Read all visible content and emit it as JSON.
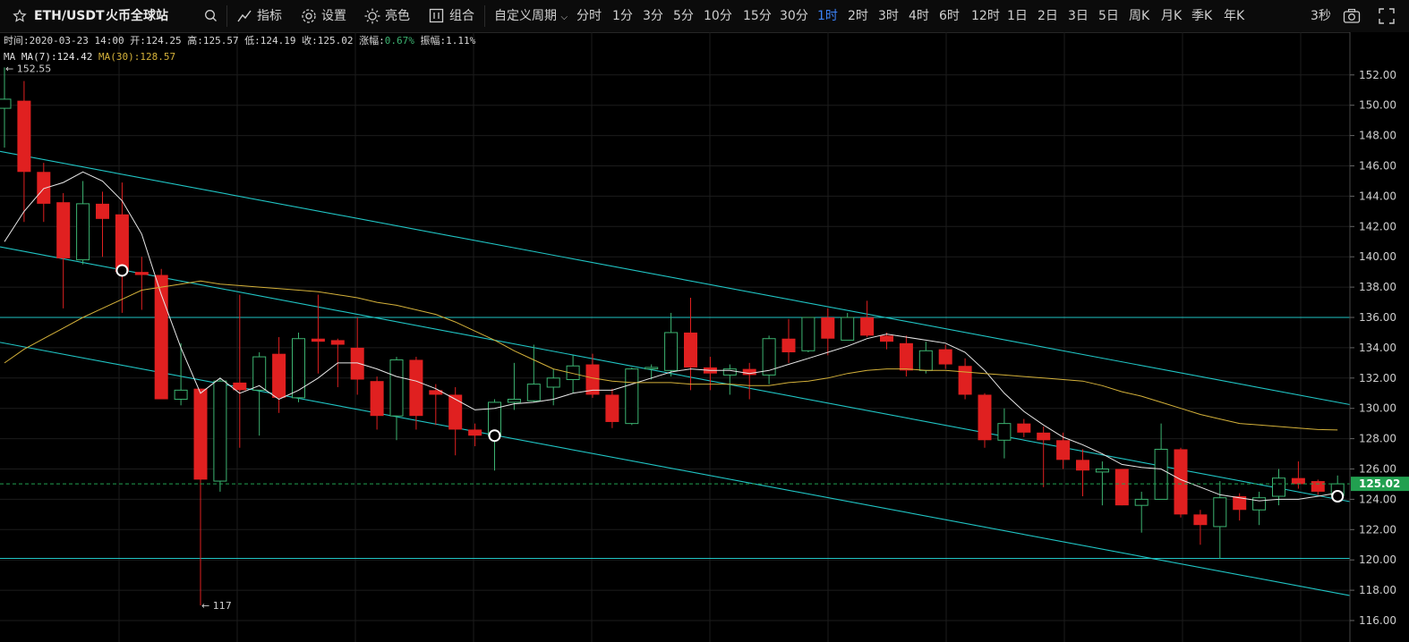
{
  "header": {
    "symbol": "ETH/USDT",
    "exchange": "火币全球站",
    "indicator_label": "指标",
    "settings_label": "设置",
    "theme_label": "亮色",
    "combo_label": "组合",
    "custom_period_label": "自定义周期",
    "periods": [
      "分时",
      "1分",
      "3分",
      "5分",
      "10分",
      "15分",
      "30分",
      "1时",
      "2时",
      "3时",
      "4时",
      "6时",
      "12时",
      "1日",
      "2日",
      "3日",
      "5日",
      "周K",
      "月K",
      "季K",
      "年K"
    ],
    "active_period": "1时",
    "refresh_label": "3秒"
  },
  "colors": {
    "up": "#3cb371",
    "down": "#e02020",
    "ma7": "#e8e8e8",
    "ma30": "#d4b13a",
    "trend": "#20c5c5",
    "price_tag": "#22a050",
    "active": "#3b82f6"
  },
  "info_bar": {
    "time_label": "时间:",
    "time_value": "2020-03-23 14:00",
    "open_label": "开:",
    "open_value": "124.25",
    "high_label": "高:",
    "high_value": "125.57",
    "low_label": "低:",
    "low_value": "124.19",
    "close_label": "收:",
    "close_value": "125.02",
    "change_label": "涨幅:",
    "change_value": "0.67%",
    "amplitude_label": "振幅:",
    "amplitude_value": "1.11%"
  },
  "ma_bar": {
    "ma_label": "MA",
    "ma7": "MA(7):124.42",
    "ma30": "MA(30):128.57"
  },
  "chart_data": {
    "type": "candlestick",
    "y_ticks": [
      116,
      118,
      120,
      122,
      124,
      126,
      128,
      130,
      132,
      134,
      136,
      138,
      140,
      142,
      144,
      146,
      148,
      150,
      152
    ],
    "ylim": [
      115.2,
      154.1
    ],
    "last_price": "125.02",
    "max_marker": "← 152.55",
    "min_marker": "← 117",
    "candles": [
      {
        "o": 149.8,
        "h": 152.5,
        "l": 147.2,
        "c": 150.4
      },
      {
        "o": 150.3,
        "h": 151.6,
        "l": 142.3,
        "c": 145.6
      },
      {
        "o": 145.6,
        "h": 146.2,
        "l": 142.3,
        "c": 143.5
      },
      {
        "o": 143.6,
        "h": 144.2,
        "l": 136.6,
        "c": 139.9
      },
      {
        "o": 139.8,
        "h": 145.0,
        "l": 139.5,
        "c": 143.5
      },
      {
        "o": 143.5,
        "h": 144.3,
        "l": 140.0,
        "c": 142.5
      },
      {
        "o": 142.8,
        "h": 144.9,
        "l": 136.3,
        "c": 139.0
      },
      {
        "o": 139.0,
        "h": 140.0,
        "l": 136.5,
        "c": 138.8
      },
      {
        "o": 138.8,
        "h": 139.2,
        "l": 130.6,
        "c": 130.6
      },
      {
        "o": 130.6,
        "h": 134.3,
        "l": 130.2,
        "c": 131.2
      },
      {
        "o": 131.3,
        "h": 131.3,
        "l": 117.0,
        "c": 125.3
      },
      {
        "o": 125.2,
        "h": 132.0,
        "l": 124.5,
        "c": 131.8
      },
      {
        "o": 131.7,
        "h": 137.5,
        "l": 127.4,
        "c": 131.2
      },
      {
        "o": 131.2,
        "h": 133.7,
        "l": 128.2,
        "c": 133.4
      },
      {
        "o": 133.6,
        "h": 134.7,
        "l": 129.7,
        "c": 130.7
      },
      {
        "o": 130.7,
        "h": 135.0,
        "l": 130.4,
        "c": 134.6
      },
      {
        "o": 134.6,
        "h": 137.5,
        "l": 132.3,
        "c": 134.4
      },
      {
        "o": 134.5,
        "h": 134.6,
        "l": 131.4,
        "c": 134.2
      },
      {
        "o": 134.0,
        "h": 136.0,
        "l": 130.9,
        "c": 131.9
      },
      {
        "o": 131.8,
        "h": 132.1,
        "l": 128.6,
        "c": 129.5
      },
      {
        "o": 129.5,
        "h": 133.4,
        "l": 127.9,
        "c": 133.2
      },
      {
        "o": 133.2,
        "h": 133.4,
        "l": 128.6,
        "c": 129.5
      },
      {
        "o": 131.2,
        "h": 131.6,
        "l": 128.9,
        "c": 130.9
      },
      {
        "o": 130.9,
        "h": 131.4,
        "l": 126.9,
        "c": 128.6
      },
      {
        "o": 128.6,
        "h": 129.0,
        "l": 127.5,
        "c": 128.2
      },
      {
        "o": 128.2,
        "h": 130.6,
        "l": 125.9,
        "c": 130.4
      },
      {
        "o": 130.4,
        "h": 133.0,
        "l": 129.9,
        "c": 130.6
      },
      {
        "o": 130.5,
        "h": 134.2,
        "l": 130.4,
        "c": 131.6
      },
      {
        "o": 131.4,
        "h": 132.6,
        "l": 130.2,
        "c": 132.0
      },
      {
        "o": 131.9,
        "h": 133.5,
        "l": 131.0,
        "c": 132.8
      },
      {
        "o": 132.9,
        "h": 133.6,
        "l": 130.7,
        "c": 130.9
      },
      {
        "o": 130.9,
        "h": 131.3,
        "l": 128.7,
        "c": 129.1
      },
      {
        "o": 129.0,
        "h": 132.7,
        "l": 128.9,
        "c": 132.6
      },
      {
        "o": 132.6,
        "h": 132.9,
        "l": 131.9,
        "c": 132.7
      },
      {
        "o": 132.5,
        "h": 136.3,
        "l": 132.1,
        "c": 135.0
      },
      {
        "o": 135.0,
        "h": 137.3,
        "l": 131.2,
        "c": 132.7
      },
      {
        "o": 132.7,
        "h": 133.4,
        "l": 131.2,
        "c": 132.3
      },
      {
        "o": 132.2,
        "h": 132.9,
        "l": 130.9,
        "c": 132.6
      },
      {
        "o": 132.6,
        "h": 133.0,
        "l": 130.6,
        "c": 132.2
      },
      {
        "o": 132.2,
        "h": 134.8,
        "l": 131.6,
        "c": 134.6
      },
      {
        "o": 134.6,
        "h": 135.9,
        "l": 133.0,
        "c": 133.7
      },
      {
        "o": 133.8,
        "h": 136.0,
        "l": 133.7,
        "c": 136.0
      },
      {
        "o": 136.0,
        "h": 136.6,
        "l": 133.5,
        "c": 134.6
      },
      {
        "o": 134.5,
        "h": 136.3,
        "l": 134.5,
        "c": 136.0
      },
      {
        "o": 136.0,
        "h": 137.1,
        "l": 134.7,
        "c": 134.8
      },
      {
        "o": 134.8,
        "h": 135.0,
        "l": 133.9,
        "c": 134.4
      },
      {
        "o": 134.3,
        "h": 134.8,
        "l": 132.1,
        "c": 132.5
      },
      {
        "o": 132.5,
        "h": 134.4,
        "l": 132.3,
        "c": 133.8
      },
      {
        "o": 133.9,
        "h": 134.2,
        "l": 132.6,
        "c": 132.9
      },
      {
        "o": 132.8,
        "h": 133.3,
        "l": 130.6,
        "c": 130.9
      },
      {
        "o": 130.9,
        "h": 131.0,
        "l": 127.4,
        "c": 127.9
      },
      {
        "o": 127.9,
        "h": 130.0,
        "l": 126.7,
        "c": 129.0
      },
      {
        "o": 129.0,
        "h": 129.3,
        "l": 128.1,
        "c": 128.4
      },
      {
        "o": 128.4,
        "h": 128.8,
        "l": 124.8,
        "c": 127.9
      },
      {
        "o": 127.9,
        "h": 128.4,
        "l": 126.0,
        "c": 126.6
      },
      {
        "o": 126.6,
        "h": 127.3,
        "l": 124.2,
        "c": 125.9
      },
      {
        "o": 125.8,
        "h": 126.5,
        "l": 123.6,
        "c": 126.0
      },
      {
        "o": 126.0,
        "h": 126.0,
        "l": 123.6,
        "c": 123.6
      },
      {
        "o": 123.6,
        "h": 124.5,
        "l": 121.8,
        "c": 124.0
      },
      {
        "o": 124.0,
        "h": 129.0,
        "l": 124.0,
        "c": 127.3
      },
      {
        "o": 127.3,
        "h": 127.4,
        "l": 122.8,
        "c": 123.0
      },
      {
        "o": 123.0,
        "h": 123.3,
        "l": 121.0,
        "c": 122.3
      },
      {
        "o": 122.2,
        "h": 125.2,
        "l": 120.1,
        "c": 124.1
      },
      {
        "o": 124.2,
        "h": 124.4,
        "l": 122.6,
        "c": 123.3
      },
      {
        "o": 123.3,
        "h": 124.5,
        "l": 122.3,
        "c": 124.1
      },
      {
        "o": 124.2,
        "h": 126.0,
        "l": 123.6,
        "c": 125.4
      },
      {
        "o": 125.4,
        "h": 126.5,
        "l": 124.7,
        "c": 125.0
      },
      {
        "o": 125.2,
        "h": 125.3,
        "l": 124.3,
        "c": 124.5
      },
      {
        "o": 124.25,
        "h": 125.57,
        "l": 124.19,
        "c": 125.02
      }
    ],
    "ma7": [
      141.0,
      143.0,
      144.5,
      144.9,
      145.6,
      145.0,
      143.7,
      141.5,
      137.5,
      134.0,
      131.0,
      132.0,
      131.0,
      131.5,
      130.6,
      131.2,
      132.0,
      133.0,
      133.0,
      132.6,
      132.1,
      131.8,
      131.3,
      130.6,
      129.9,
      130.0,
      130.3,
      130.4,
      130.6,
      131.0,
      131.2,
      131.2,
      131.6,
      132.0,
      132.4,
      132.6,
      132.5,
      132.5,
      132.3,
      132.5,
      132.9,
      133.3,
      133.7,
      134.1,
      134.6,
      134.9,
      134.7,
      134.5,
      134.3,
      133.7,
      132.5,
      131.0,
      129.8,
      128.9,
      128.1,
      127.6,
      127.0,
      126.3,
      126.1,
      126.0,
      125.3,
      124.8,
      124.3,
      124.1,
      123.9,
      124.0,
      124.0,
      124.2,
      124.42
    ],
    "ma30": [
      133.0,
      133.9,
      134.6,
      135.3,
      136.0,
      136.6,
      137.2,
      137.8,
      138.0,
      138.2,
      138.4,
      138.2,
      138.1,
      138.0,
      137.9,
      137.8,
      137.7,
      137.5,
      137.3,
      137.0,
      136.8,
      136.5,
      136.2,
      135.7,
      135.1,
      134.5,
      133.8,
      133.2,
      132.6,
      132.3,
      132.0,
      131.8,
      131.7,
      131.7,
      131.7,
      131.6,
      131.6,
      131.6,
      131.5,
      131.5,
      131.7,
      131.8,
      132.0,
      132.3,
      132.5,
      132.6,
      132.6,
      132.5,
      132.5,
      132.4,
      132.3,
      132.2,
      132.1,
      132.0,
      131.9,
      131.8,
      131.5,
      131.1,
      130.8,
      130.4,
      130.0,
      129.6,
      129.3,
      129.0,
      128.9,
      128.8,
      128.7,
      128.6,
      128.57
    ],
    "trend_lines": [
      {
        "x1": 0,
        "y1": 146.9,
        "x2": 68,
        "y2": 130.4
      },
      {
        "x1": 0,
        "y1": 140.6,
        "x2": 68,
        "y2": 124.0
      },
      {
        "x1": 0,
        "y1": 134.3,
        "x2": 68,
        "y2": 117.8
      },
      {
        "y": 136.0
      },
      {
        "y": 120.1
      }
    ],
    "markers": [
      {
        "i": 6,
        "v": 139.1
      },
      {
        "i": 25,
        "v": 128.2
      },
      {
        "i": 68,
        "v": 124.2
      }
    ]
  }
}
